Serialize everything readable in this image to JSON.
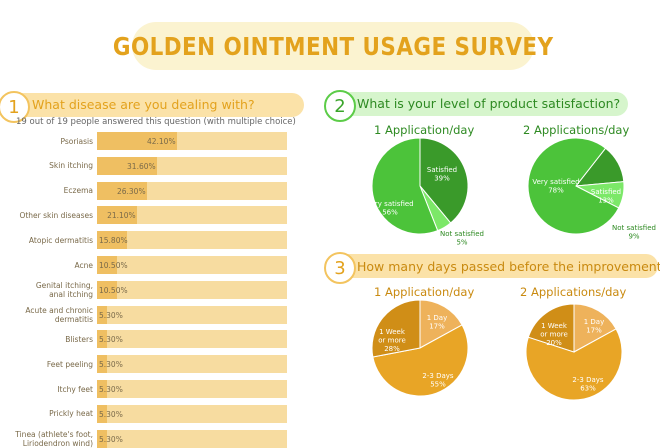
{
  "title": "GOLDEN OINTMENT USAGE SURVEY",
  "colors": {
    "gold": "#e3a21d",
    "gold_light": "#f7dca0",
    "gold_bar": "#efbf62",
    "green": "#4cc33a",
    "green_dark": "#3a9a2a",
    "green_light": "#7ce868",
    "orange_dark": "#d08e17",
    "orange_mid": "#e8a526",
    "orange_light": "#eeb25b"
  },
  "q1": {
    "number": "1",
    "question": "What disease are you dealing with?",
    "note": "19 out of 19 people answered this question (with multiple choice)"
  },
  "q2": {
    "number": "2",
    "question": "What is your level of product satisfaction?"
  },
  "q3": {
    "number": "3",
    "question": "How many days passed before the improvement"
  },
  "chart_data": [
    {
      "type": "bar",
      "orientation": "horizontal",
      "categories": [
        "Psoriasis",
        "Skin itching",
        "Eczema",
        "Other skin diseases",
        "Atopic dermatitis",
        "Acne",
        "Genital itching, anal itching",
        "Acute and chronic dermatitis",
        "Blisters",
        "Feet peeling",
        "Itchy feet",
        "Prickly heat",
        "Tinea (athlete's foot, Liriodendron wind)"
      ],
      "category_lines": [
        [
          "Psoriasis"
        ],
        [
          "Skin itching"
        ],
        [
          "Eczema"
        ],
        [
          "Other skin diseases"
        ],
        [
          "Atopic dermatitis"
        ],
        [
          "Acne"
        ],
        [
          "Genital itching,",
          "anal itching"
        ],
        [
          "Acute and chronic",
          "dermatitis"
        ],
        [
          "Blisters"
        ],
        [
          "Feet peeling"
        ],
        [
          "Itchy feet"
        ],
        [
          "Prickly heat"
        ],
        [
          "Tinea (athlete's foot,",
          "Liriodendron wind)"
        ]
      ],
      "values": [
        42.1,
        31.6,
        26.3,
        21.1,
        15.8,
        10.5,
        10.5,
        5.3,
        5.3,
        5.3,
        5.3,
        5.3,
        5.3
      ],
      "labels": [
        "42.10%",
        "31.60%",
        "26.30%",
        "21.10%",
        "15.80%",
        "10.50%",
        "10.50%",
        "5.30%",
        "5.30%",
        "5.30%",
        "5.30%",
        "5.30%",
        "5.30%"
      ],
      "xlim": [
        0,
        100
      ]
    },
    {
      "type": "pie",
      "title": "1 Application/day",
      "slices": [
        {
          "name": "Satisfied",
          "value": 39,
          "label": "39%",
          "color": "#3a9a2a"
        },
        {
          "name": "Not satisfied",
          "value": 5,
          "label": "5%",
          "color": "#7ce868"
        },
        {
          "name": "Very satisfied",
          "value": 56,
          "label": "56%",
          "color": "#4cc33a"
        }
      ]
    },
    {
      "type": "pie",
      "title": "2 Applications/day",
      "slices": [
        {
          "name": "Satisfied",
          "value": 13,
          "label": "13%",
          "color": "#3a9a2a"
        },
        {
          "name": "Not satisfied",
          "value": 9,
          "label": "9%",
          "color": "#7ce868"
        },
        {
          "name": "Very satisfied",
          "value": 78,
          "label": "78%",
          "color": "#4cc33a"
        }
      ]
    },
    {
      "type": "pie",
      "title": "1 Application/day",
      "slices": [
        {
          "name": "1 Day",
          "value": 17,
          "label": "17%",
          "color": "#eeb25b"
        },
        {
          "name": "2-3 Days",
          "value": 55,
          "label": "55%",
          "color": "#e8a526"
        },
        {
          "name": "1 Week or more",
          "value": 28,
          "label": "28%",
          "color": "#d08e17"
        }
      ]
    },
    {
      "type": "pie",
      "title": "2 Applications/day",
      "slices": [
        {
          "name": "1 Day",
          "value": 17,
          "label": "17%",
          "color": "#eeb25b"
        },
        {
          "name": "2-3 Days",
          "value": 63,
          "label": "63%",
          "color": "#e8a526"
        },
        {
          "name": "1 Week or more",
          "value": 20,
          "label": "20%",
          "color": "#d08e17"
        }
      ]
    }
  ]
}
